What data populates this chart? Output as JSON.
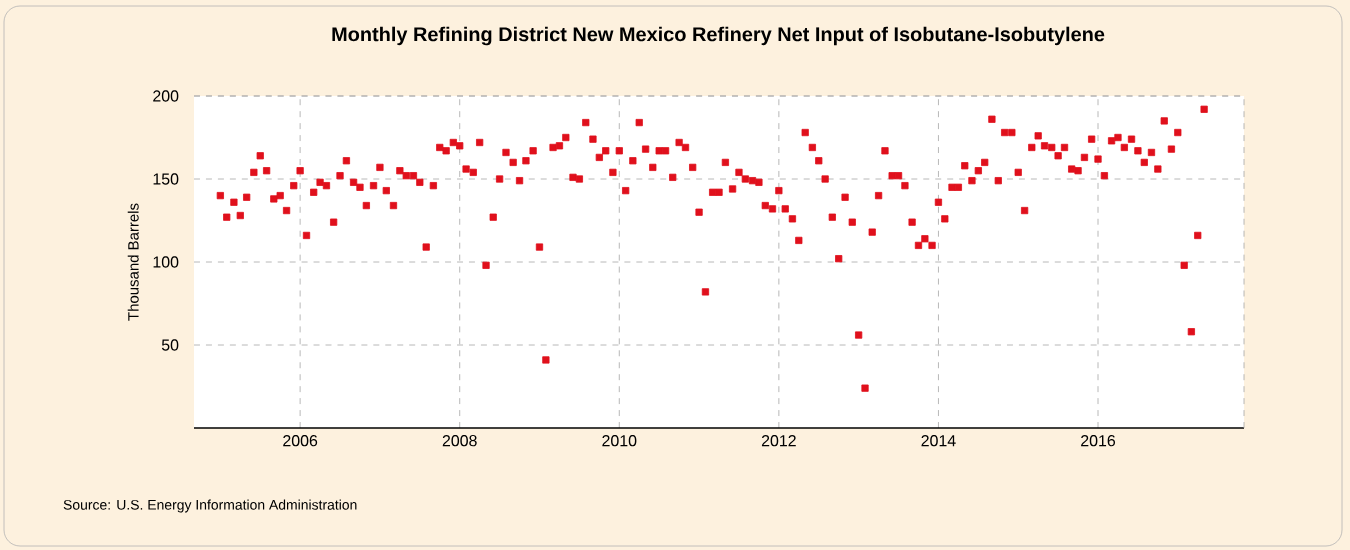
{
  "chart_data": {
    "type": "scatter",
    "title": "Monthly Refining District New Mexico Refinery Net Input of Isobutane-Isobutylene",
    "ylabel": "Thousand Barrels",
    "annotations": [
      "Source: U.S. Energy Information Administration"
    ],
    "x": [
      "2005-01",
      "2005-02",
      "2005-03",
      "2005-04",
      "2005-05",
      "2005-06",
      "2005-07",
      "2005-08",
      "2005-09",
      "2005-10",
      "2005-11",
      "2005-12",
      "2006-01",
      "2006-02",
      "2006-03",
      "2006-04",
      "2006-05",
      "2006-06",
      "2006-07",
      "2006-08",
      "2006-09",
      "2006-10",
      "2006-11",
      "2006-12",
      "2007-01",
      "2007-02",
      "2007-03",
      "2007-04",
      "2007-05",
      "2007-06",
      "2007-07",
      "2007-08",
      "2007-09",
      "2007-10",
      "2007-11",
      "2007-12",
      "2008-01",
      "2008-02",
      "2008-03",
      "2008-04",
      "2008-05",
      "2008-06",
      "2008-07",
      "2008-08",
      "2008-09",
      "2008-10",
      "2008-11",
      "2008-12",
      "2009-01",
      "2009-02",
      "2009-03",
      "2009-04",
      "2009-05",
      "2009-06",
      "2009-07",
      "2009-08",
      "2009-09",
      "2009-10",
      "2009-11",
      "2009-12",
      "2010-01",
      "2010-02",
      "2010-03",
      "2010-04",
      "2010-05",
      "2010-06",
      "2010-07",
      "2010-08",
      "2010-09",
      "2010-10",
      "2010-11",
      "2010-12",
      "2011-01",
      "2011-02",
      "2011-03",
      "2011-04",
      "2011-05",
      "2011-06",
      "2011-07",
      "2011-08",
      "2011-09",
      "2011-10",
      "2011-11",
      "2011-12",
      "2012-01",
      "2012-02",
      "2012-03",
      "2012-04",
      "2012-05",
      "2012-06",
      "2012-07",
      "2012-08",
      "2012-09",
      "2012-10",
      "2012-11",
      "2012-12",
      "2013-01",
      "2013-02",
      "2013-03",
      "2013-04",
      "2013-05",
      "2013-06",
      "2013-07",
      "2013-08",
      "2013-09",
      "2013-10",
      "2013-11",
      "2013-12",
      "2014-01",
      "2014-02",
      "2014-03",
      "2014-04",
      "2014-05",
      "2014-06",
      "2014-07",
      "2014-08",
      "2014-09",
      "2014-10",
      "2014-11",
      "2014-12",
      "2015-01",
      "2015-02",
      "2015-03",
      "2015-04",
      "2015-05",
      "2015-06",
      "2015-07",
      "2015-08",
      "2015-09",
      "2015-10",
      "2015-11",
      "2015-12",
      "2016-01",
      "2016-02",
      "2016-03",
      "2016-04",
      "2016-05",
      "2016-06",
      "2016-07",
      "2016-08",
      "2016-09",
      "2016-10",
      "2016-11",
      "2016-12",
      "2017-01",
      "2017-02",
      "2017-03",
      "2017-04",
      "2017-05"
    ],
    "values": [
      140,
      127,
      136,
      128,
      139,
      154,
      164,
      155,
      138,
      140,
      131,
      146,
      155,
      116,
      142,
      148,
      146,
      124,
      152,
      161,
      148,
      145,
      134,
      146,
      157,
      143,
      134,
      155,
      152,
      152,
      148,
      109,
      146,
      169,
      167,
      172,
      170,
      156,
      154,
      172,
      98,
      127,
      150,
      166,
      160,
      149,
      161,
      167,
      109,
      41,
      169,
      170,
      175,
      151,
      150,
      184,
      174,
      163,
      167,
      154,
      167,
      143,
      161,
      184,
      168,
      157,
      167,
      167,
      151,
      172,
      169,
      157,
      130,
      82,
      142,
      142,
      160,
      144,
      154,
      150,
      149,
      148,
      134,
      132,
      143,
      132,
      126,
      113,
      178,
      169,
      161,
      150,
      127,
      102,
      139,
      124,
      56,
      24,
      118,
      140,
      167,
      152,
      152,
      146,
      124,
      110,
      114,
      110,
      136,
      126,
      145,
      145,
      158,
      149,
      155,
      160,
      186,
      149,
      178,
      178,
      154,
      131,
      169,
      176,
      170,
      169,
      164,
      169,
      156,
      155,
      163,
      174,
      162,
      152,
      173,
      175,
      169,
      174,
      167,
      160,
      166,
      156,
      185,
      168,
      178,
      98,
      58,
      116,
      192
    ],
    "color": "#e0101c",
    "marker": "square",
    "xlim": [
      "2004-09",
      "2017-11"
    ],
    "xticks": [
      "2006",
      "2008",
      "2010",
      "2012",
      "2014",
      "2016"
    ],
    "ylim": [
      0,
      200
    ],
    "yticks": [
      50,
      100,
      150,
      200
    ],
    "grid": true
  }
}
